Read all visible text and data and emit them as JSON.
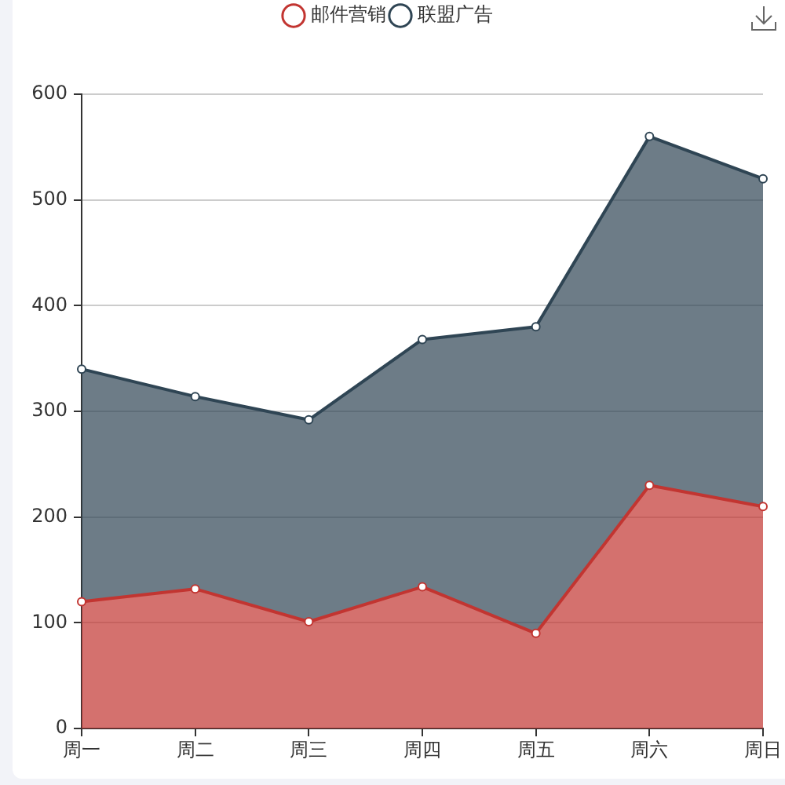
{
  "chart_data": {
    "type": "area",
    "categories": [
      "周一",
      "周二",
      "周三",
      "周四",
      "周五",
      "周六",
      "周日"
    ],
    "series": [
      {
        "name": "邮件营销",
        "color": "#c23531",
        "values": [
          120,
          132,
          101,
          134,
          90,
          230,
          210
        ]
      },
      {
        "name": "联盟广告",
        "color": "#2f4554",
        "values": [
          220,
          182,
          191,
          234,
          290,
          330,
          310
        ]
      }
    ],
    "stacked": true,
    "ylim": [
      0,
      600
    ],
    "yticks": [
      0,
      100,
      200,
      300,
      400,
      500,
      600
    ],
    "grid": "y",
    "legend": "top",
    "marker": "circle"
  }
}
